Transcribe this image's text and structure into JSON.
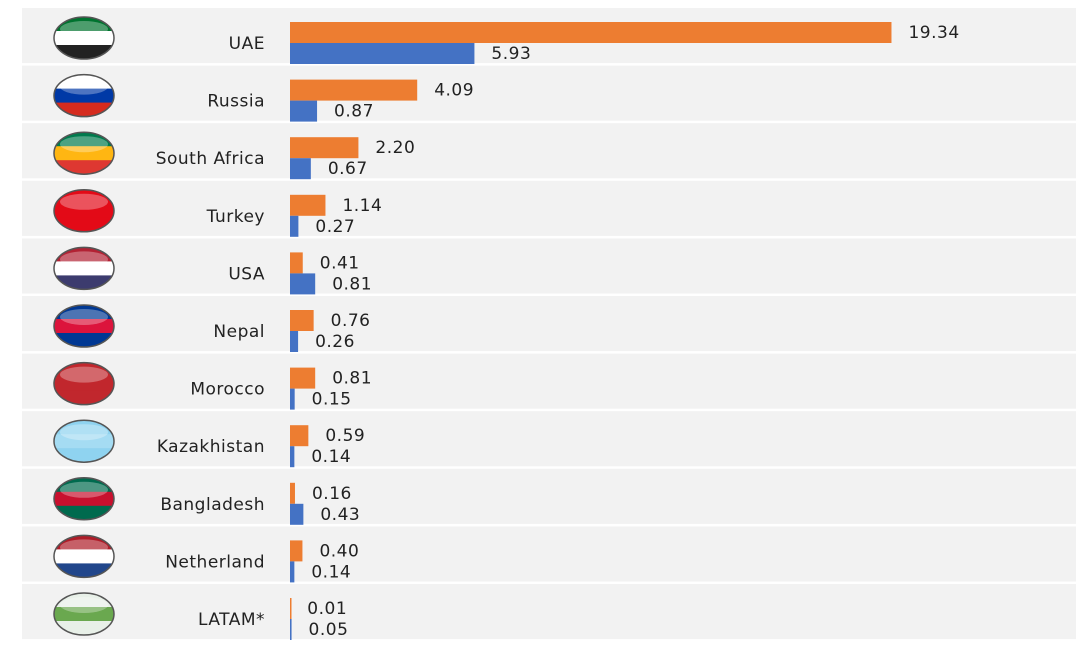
{
  "chart_data": {
    "type": "bar",
    "orientation": "horizontal",
    "categories": [
      "UAE",
      "Russia",
      "South Africa",
      "Turkey",
      "USA",
      "Nepal",
      "Morocco",
      "Kazakhistan",
      "Bangladesh",
      "Netherland",
      "LATAM*"
    ],
    "series": [
      {
        "color": "#ed7d31",
        "values": [
          19.34,
          4.09,
          2.2,
          1.14,
          0.41,
          0.76,
          0.81,
          0.59,
          0.16,
          0.4,
          0.01
        ],
        "value_labels": [
          "19.34",
          "4.09",
          "2.20",
          "1.14",
          "0.41",
          "0.76",
          "0.81",
          "0.59",
          "0.16",
          "0.40",
          "0.01"
        ]
      },
      {
        "color": "#4472c4",
        "values": [
          5.93,
          0.87,
          0.67,
          0.27,
          0.81,
          0.26,
          0.15,
          0.14,
          0.43,
          0.14,
          0.05
        ],
        "value_labels": [
          "5.93",
          "0.87",
          "0.67",
          "0.27",
          "0.81",
          "0.26",
          "0.15",
          "0.14",
          "0.43",
          "0.14",
          "0.05"
        ]
      }
    ],
    "xlim": [
      0,
      20
    ]
  }
}
